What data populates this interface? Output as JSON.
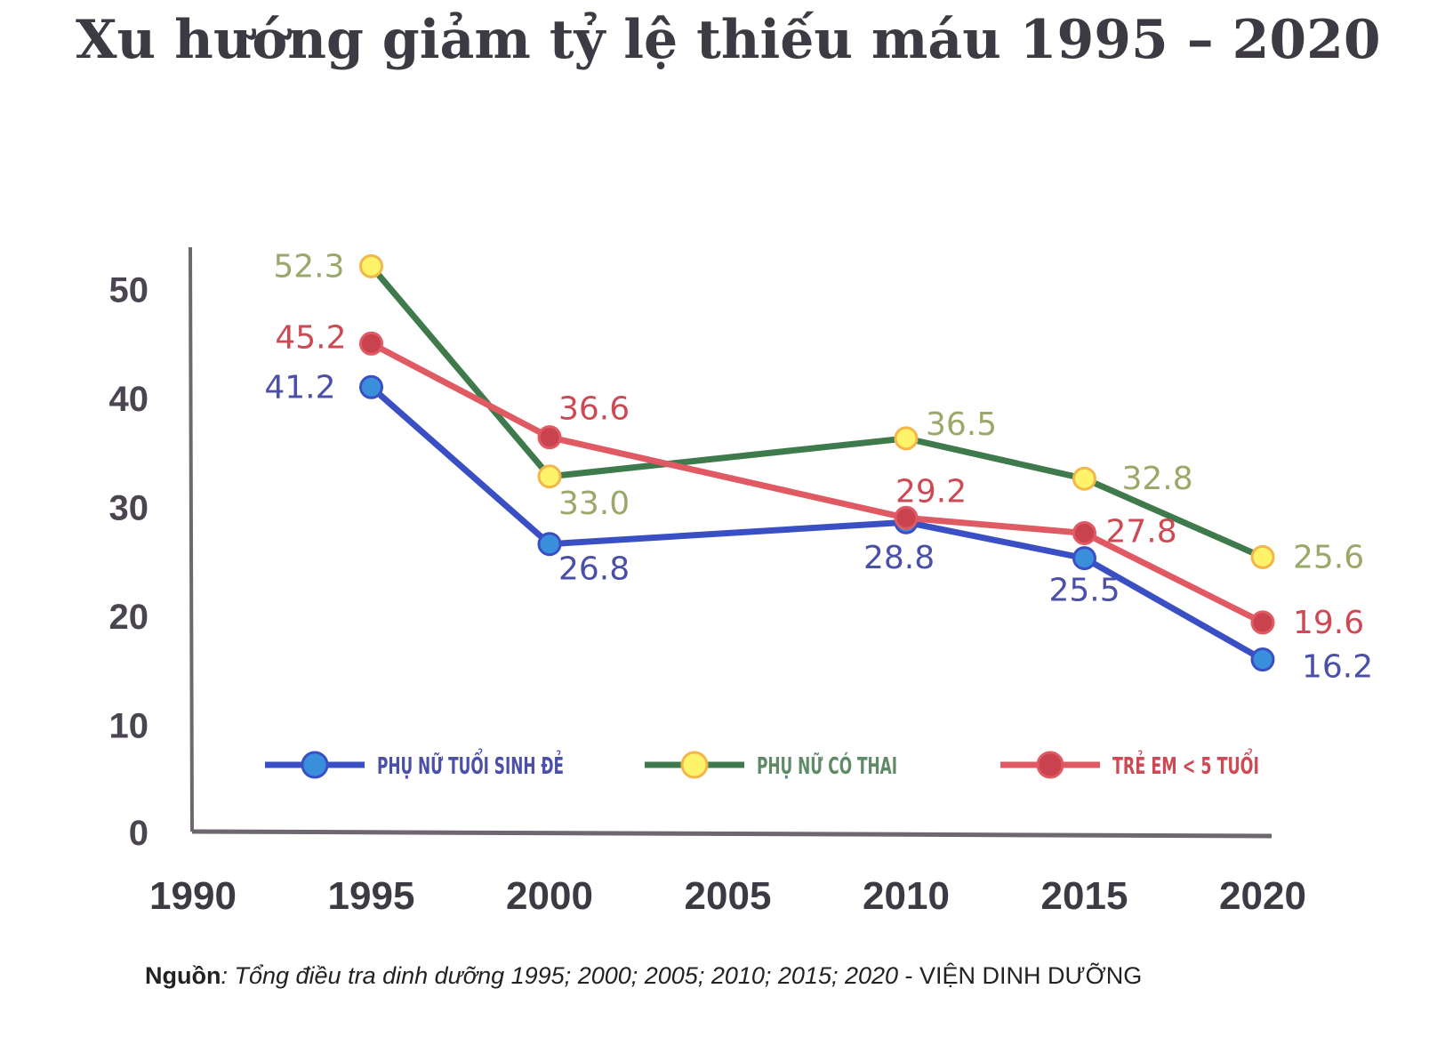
{
  "title": "Xu hướng giảm tỷ lệ thiếu máu 1995 – 2020",
  "source": {
    "label": "Nguồn",
    "text": ": Tổng điều tra dinh dưỡng 1995; 2000; 2005; 2010; 2015; 2020",
    "org": " - VIỆN DINH DƯỠNG"
  },
  "chart_data": {
    "type": "line",
    "title": "Xu hướng giảm tỷ lệ thiếu máu 1995 – 2020",
    "xlabel": "",
    "ylabel": "",
    "x_ticks": [
      1990,
      1995,
      2000,
      2005,
      2010,
      2015,
      2020
    ],
    "y_ticks": [
      0,
      10,
      20,
      30,
      40,
      50
    ],
    "xlim": [
      1990,
      2020
    ],
    "ylim": [
      0,
      53
    ],
    "grid": false,
    "legend_position": "inside-bottom",
    "x": [
      1995,
      2000,
      2010,
      2015,
      2020
    ],
    "series": [
      {
        "name": "PHỤ NỮ TUỔI SINH ĐẺ",
        "line_color": "#3b4fc4",
        "marker_color": "#3a8fdc",
        "label_color": "#4a4fa8",
        "values": [
          41.2,
          26.8,
          28.8,
          25.5,
          16.2
        ]
      },
      {
        "name": "PHỤ NỮ CÓ THAI",
        "line_color": "#3f7a4c",
        "marker_color": "#fff36a",
        "label_color": "#9aa86a",
        "values": [
          52.3,
          33.0,
          36.5,
          32.8,
          25.6
        ]
      },
      {
        "name": "TRẺ EM < 5 TUỔI",
        "line_color": "#df5a62",
        "marker_color": "#c9434f",
        "label_color": "#cd4a55",
        "values": [
          45.2,
          36.6,
          29.2,
          27.8,
          19.6
        ]
      }
    ]
  }
}
